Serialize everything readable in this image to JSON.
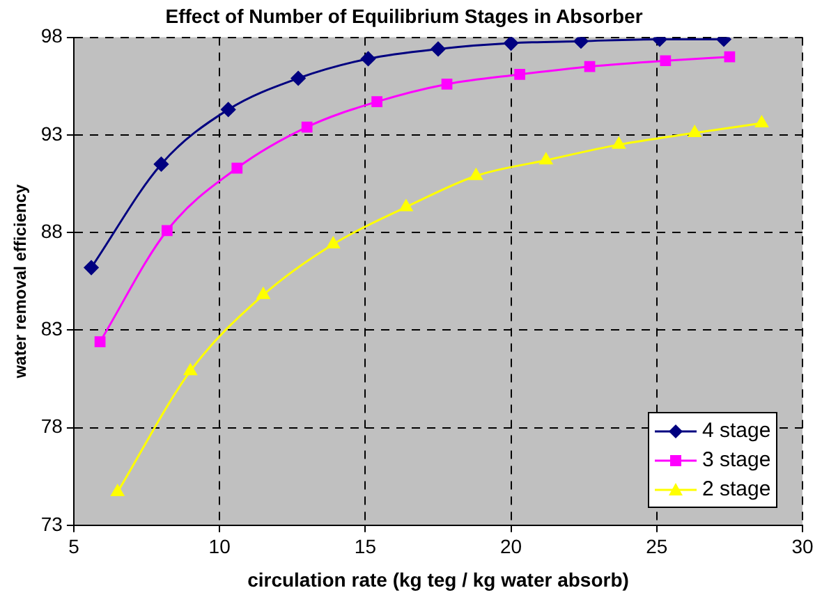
{
  "chart_data": {
    "type": "line",
    "title": "Effect of Number of Equilibrium Stages in Absorber",
    "xlabel": "circulation rate (kg teg / kg water absorb)",
    "ylabel": "water removal efficiency",
    "xlim": [
      5,
      30
    ],
    "xticks": [
      5,
      10,
      15,
      20,
      25,
      30
    ],
    "ylim": [
      73,
      98
    ],
    "yticks": [
      73,
      78,
      83,
      88,
      93,
      98
    ],
    "grid": true,
    "legend": "bottom right",
    "line_style": "solid",
    "series": [
      {
        "name": "4 stage",
        "color": "#000080",
        "marker": "diamond",
        "x": [
          5.6,
          8.0,
          10.3,
          12.7,
          15.1,
          17.5,
          20.0,
          22.4,
          25.1,
          27.3
        ],
        "values": [
          86.2,
          91.5,
          94.3,
          95.9,
          96.9,
          97.4,
          97.7,
          97.8,
          97.9,
          97.9
        ]
      },
      {
        "name": "3 stage",
        "color": "#ff00ff",
        "marker": "square",
        "x": [
          5.9,
          8.2,
          10.6,
          13.0,
          15.4,
          17.8,
          20.3,
          22.7,
          25.3,
          27.5
        ],
        "values": [
          82.4,
          88.1,
          91.3,
          93.4,
          94.7,
          95.6,
          96.1,
          96.5,
          96.8,
          97.0
        ]
      },
      {
        "name": "2 stage",
        "color": "#ffff00",
        "marker": "triangle",
        "x": [
          6.5,
          9.0,
          11.5,
          13.9,
          16.4,
          18.8,
          21.2,
          23.7,
          26.3,
          28.6
        ],
        "values": [
          74.7,
          80.9,
          84.8,
          87.4,
          89.3,
          90.9,
          91.7,
          92.5,
          93.1,
          93.6
        ]
      }
    ]
  }
}
